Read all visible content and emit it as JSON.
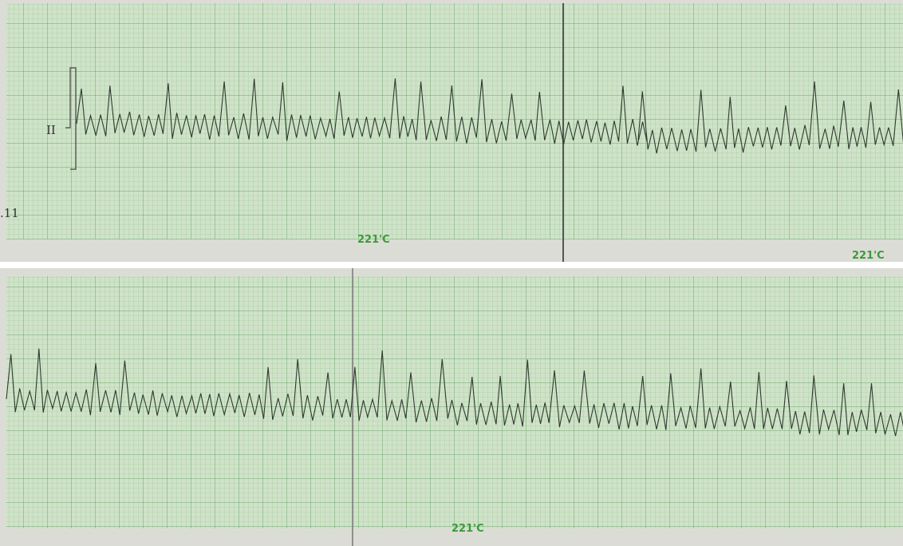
{
  "strips": [
    {
      "lead_label": "II",
      "corner_label": ".11",
      "stamps": [
        "221'C",
        "221'C"
      ]
    },
    {
      "stamps": [
        "221'C"
      ]
    }
  ]
}
